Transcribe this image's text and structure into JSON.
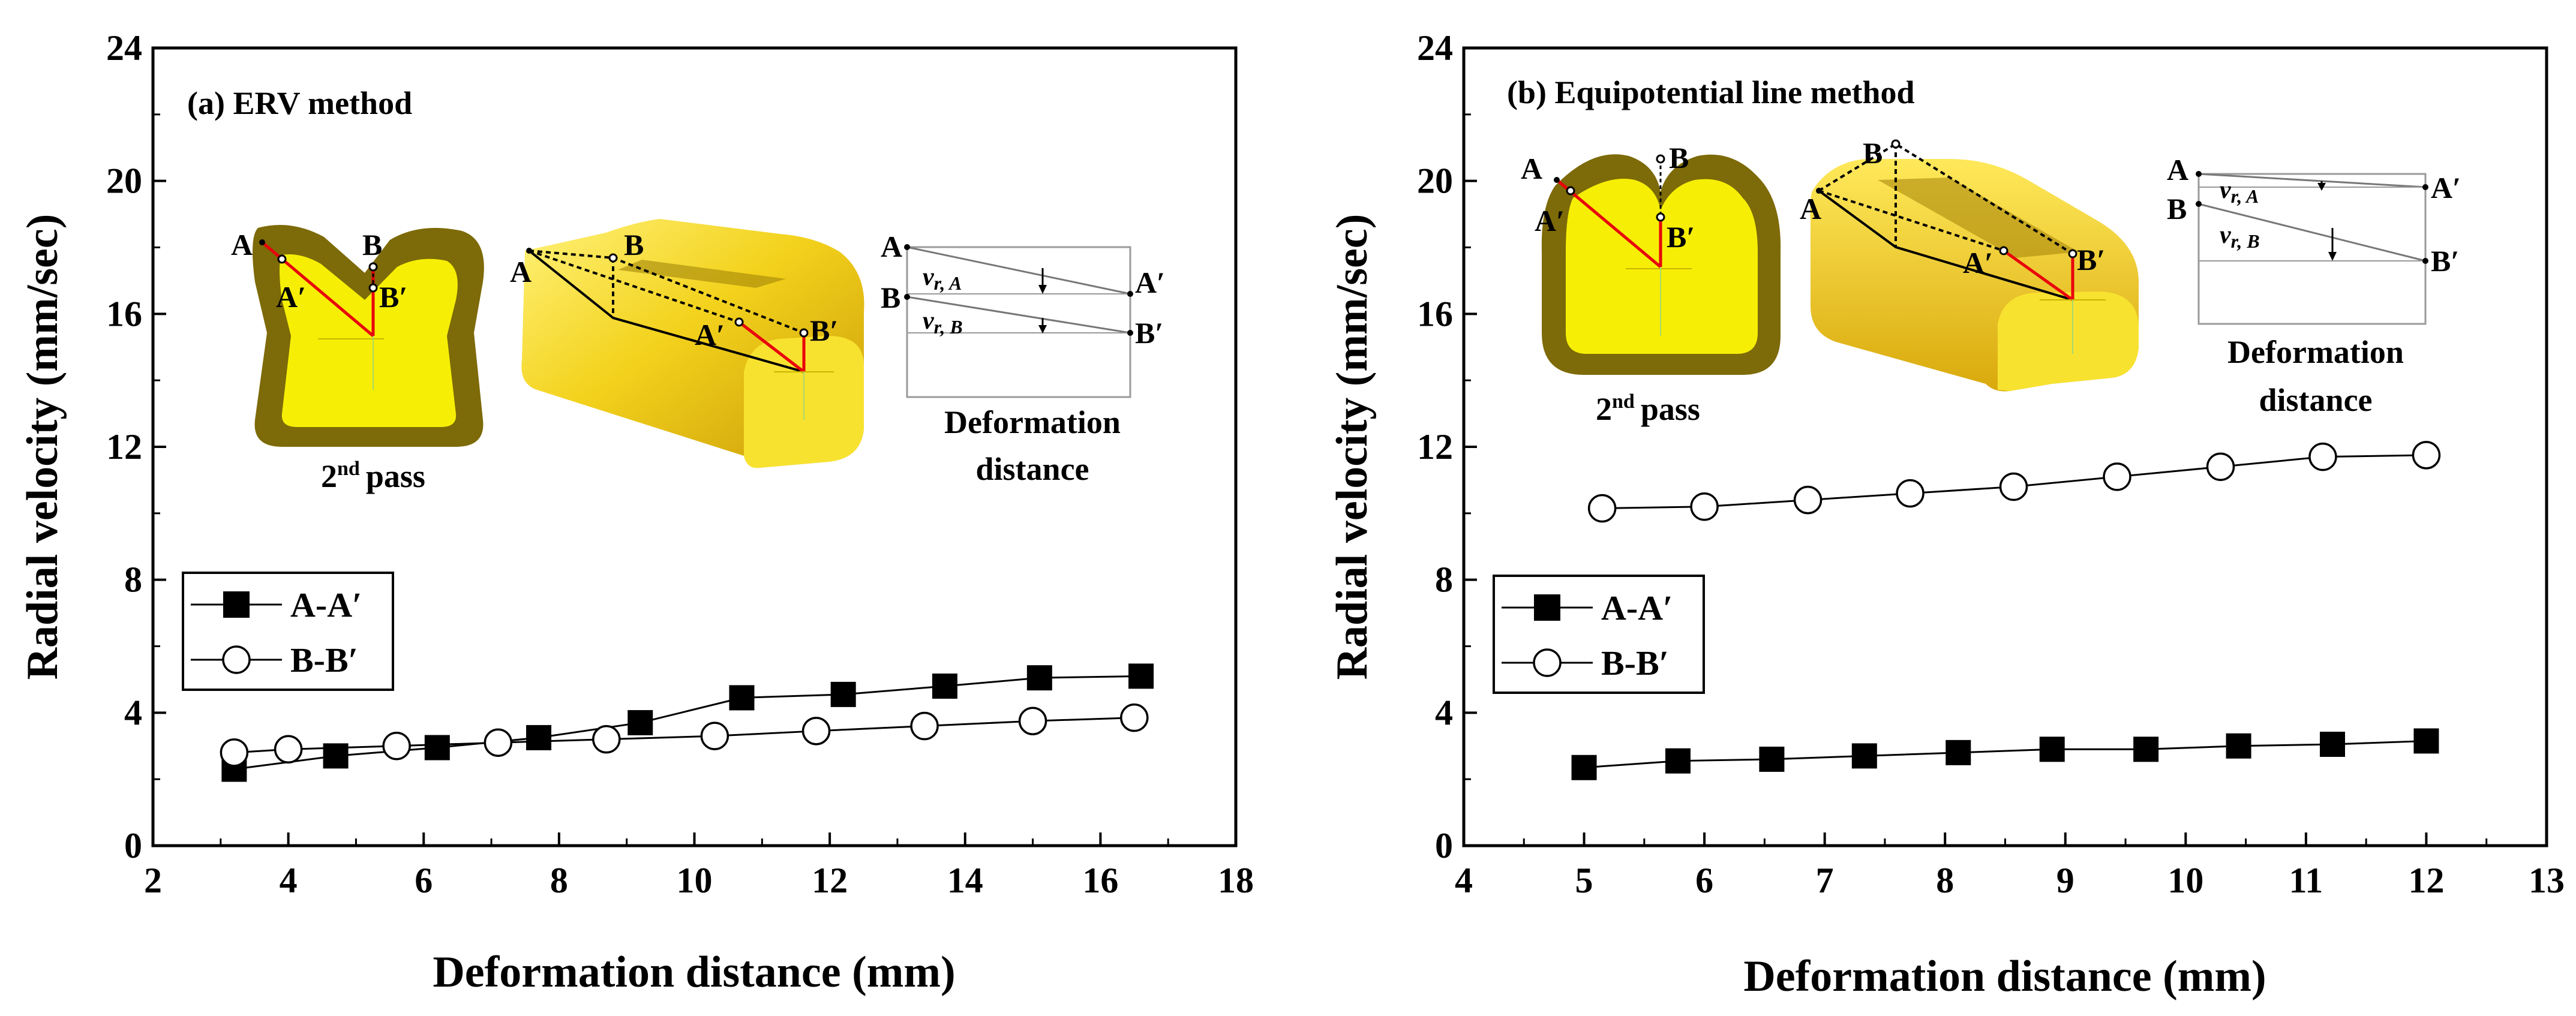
{
  "chart_data": [
    {
      "type": "line",
      "title": "(a) ERV method",
      "xlabel": "Deformation distance (mm)",
      "ylabel": "Radial velocity (mm/sec)",
      "xlim": [
        2,
        18
      ],
      "ylim": [
        0,
        24
      ],
      "xticks": [
        2,
        4,
        6,
        8,
        10,
        12,
        14,
        16,
        18
      ],
      "yticks": [
        0,
        4,
        8,
        12,
        16,
        20,
        24
      ],
      "legend_position": "middle-left",
      "series": [
        {
          "name": "A-A′",
          "marker": "filled-square",
          "x": [
            3.2,
            4.7,
            6.2,
            7.7,
            9.2,
            10.7,
            12.2,
            13.7,
            15.1,
            16.6
          ],
          "y": [
            2.3,
            2.7,
            2.95,
            3.25,
            3.7,
            4.45,
            4.55,
            4.8,
            5.05,
            5.1
          ]
        },
        {
          "name": "B-B′",
          "marker": "open-circle",
          "x": [
            3.2,
            4.0,
            5.6,
            7.1,
            8.7,
            10.3,
            11.8,
            13.4,
            15.0,
            16.5
          ],
          "y": [
            2.8,
            2.9,
            3.0,
            3.1,
            3.2,
            3.3,
            3.45,
            3.6,
            3.75,
            3.85
          ]
        }
      ],
      "inset": {
        "pass_label": "2",
        "pass_sup": "nd",
        "pass_suffix": "pass",
        "point_labels": [
          "A",
          "B",
          "A′",
          "B′"
        ],
        "velocity_labels": [
          "v",
          "r, A",
          "r, B"
        ],
        "caption_line1": "Deformation",
        "caption_line2": "distance"
      }
    },
    {
      "type": "line",
      "title": "(b) Equipotential line method",
      "xlabel": "Deformation distance (mm)",
      "ylabel": "Radial velocity (mm/sec)",
      "xlim": [
        4,
        13
      ],
      "ylim": [
        0,
        24
      ],
      "xticks": [
        4,
        5,
        6,
        7,
        8,
        9,
        10,
        11,
        12,
        13
      ],
      "yticks": [
        0,
        4,
        8,
        12,
        16,
        20,
        24
      ],
      "legend_position": "lower-left",
      "series": [
        {
          "name": "A-A′",
          "marker": "filled-square",
          "x": [
            5.0,
            5.78,
            6.56,
            7.33,
            8.11,
            8.89,
            9.67,
            10.44,
            11.22,
            12.0
          ],
          "y": [
            2.35,
            2.55,
            2.6,
            2.7,
            2.8,
            2.9,
            2.9,
            3.0,
            3.05,
            3.15
          ]
        },
        {
          "name": "B-B′",
          "marker": "open-circle",
          "x": [
            5.15,
            6.0,
            6.86,
            7.71,
            8.57,
            9.43,
            10.29,
            11.14,
            12.0
          ],
          "y": [
            10.15,
            10.2,
            10.4,
            10.6,
            10.8,
            11.1,
            11.4,
            11.7,
            11.75
          ]
        }
      ],
      "inset": {
        "pass_label": "2",
        "pass_sup": "nd",
        "pass_suffix": "pass",
        "point_labels": [
          "A",
          "B",
          "A′",
          "B′"
        ],
        "velocity_labels": [
          "v",
          "r, A",
          "r, B"
        ],
        "caption_line1": "Deformation",
        "caption_line2": "distance"
      }
    }
  ]
}
